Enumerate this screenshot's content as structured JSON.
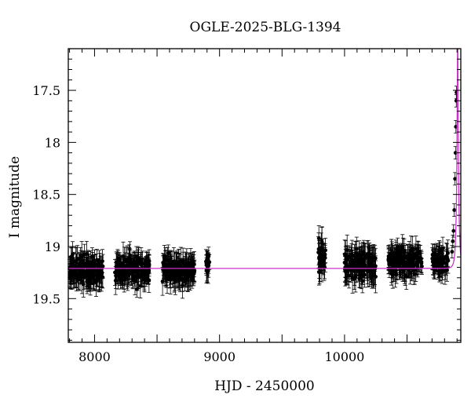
{
  "chart_data": {
    "type": "scatter",
    "title": "OGLE-2025-BLG-1394",
    "xlabel": "HJD - 2450000",
    "ylabel": "I magnitude",
    "xlim": [
      7790,
      10930
    ],
    "ylim": [
      19.92,
      17.1
    ],
    "y_inverted": true,
    "x_ticks": [
      8000,
      9000,
      10000
    ],
    "x_tick_labels": [
      "8000",
      "9000",
      "10000"
    ],
    "y_ticks": [
      17.5,
      18,
      18.5,
      19,
      19.5
    ],
    "y_tick_labels": [
      "17.5",
      "18",
      "18.5",
      "19",
      "19.5"
    ],
    "grid": false,
    "legend": "none",
    "colors": {
      "points": "#000000",
      "model": "#cc33cc",
      "axes": "#000000"
    },
    "series": [
      {
        "kind": "observations",
        "marker": "circle-with-errorbars",
        "seasons": [
          {
            "x_range": [
              7800,
              8070
            ],
            "mag_mean": 19.23,
            "mag_scatter": 0.09,
            "err": 0.11
          },
          {
            "x_range": [
              8160,
              8440
            ],
            "mag_mean": 19.22,
            "mag_scatter": 0.09,
            "err": 0.11
          },
          {
            "x_range": [
              8540,
              8800
            ],
            "mag_mean": 19.23,
            "mag_scatter": 0.08,
            "err": 0.11
          },
          {
            "x_range": [
              8890,
              8920
            ],
            "mag_mean": 19.18,
            "mag_scatter": 0.06,
            "err": 0.1
          },
          {
            "x_range": [
              9790,
              9850
            ],
            "mag_mean": 19.12,
            "mag_scatter": 0.13,
            "err": 0.12
          },
          {
            "x_range": [
              10000,
              10250
            ],
            "mag_mean": 19.17,
            "mag_scatter": 0.1,
            "err": 0.12
          },
          {
            "x_range": [
              10350,
              10620
            ],
            "mag_mean": 19.14,
            "mag_scatter": 0.08,
            "err": 0.11
          },
          {
            "x_range": [
              10700,
              10830
            ],
            "mag_mean": 19.15,
            "mag_scatter": 0.08,
            "err": 0.1
          }
        ],
        "peak_points": [
          {
            "x": 10860,
            "y": 19.05
          },
          {
            "x": 10866,
            "y": 18.95
          },
          {
            "x": 10872,
            "y": 18.85
          },
          {
            "x": 10878,
            "y": 18.65
          },
          {
            "x": 10884,
            "y": 18.35
          },
          {
            "x": 10888,
            "y": 18.1
          },
          {
            "x": 10891,
            "y": 17.85
          },
          {
            "x": 10894,
            "y": 17.6
          },
          {
            "x": 10896,
            "y": 17.52
          }
        ]
      },
      {
        "kind": "model",
        "baseline": 19.21,
        "t0": 10905,
        "tE": 16,
        "u0": 0.09
      }
    ]
  }
}
